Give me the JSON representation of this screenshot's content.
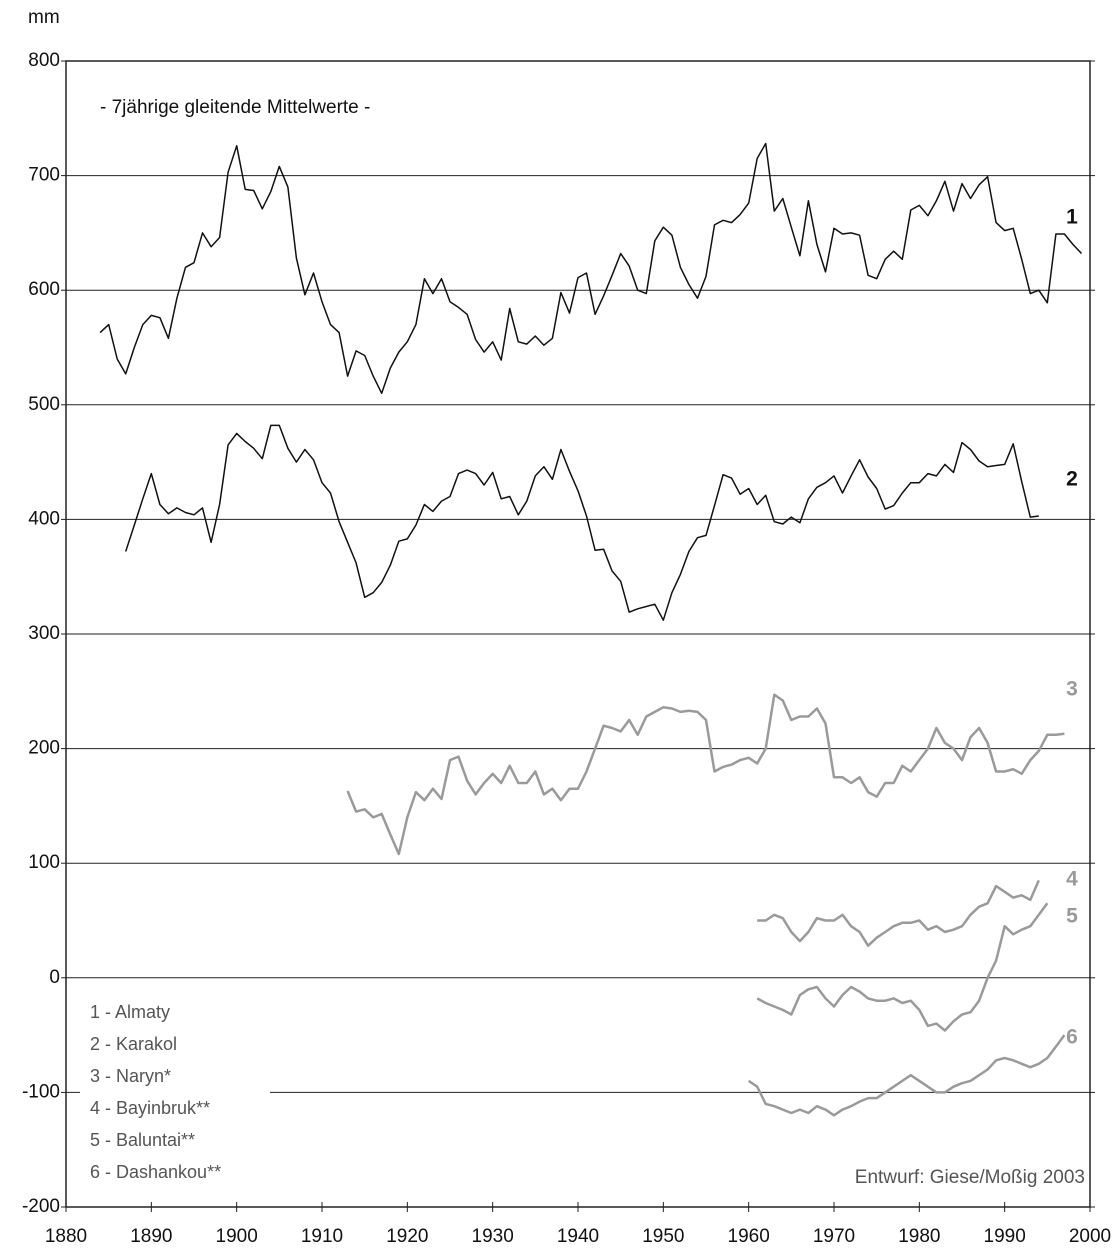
{
  "chart_data": {
    "type": "line",
    "y_label": "mm",
    "annotations": [
      "- 7jährige gleitende Mittelwerte -",
      "Entwurf: Giese/Moßig 2003"
    ],
    "xlim": [
      1880,
      2000
    ],
    "xticks": [
      1880,
      1890,
      1900,
      1910,
      1920,
      1930,
      1940,
      1950,
      1960,
      1970,
      1980,
      1990,
      2000
    ],
    "ylim": [
      -200,
      800
    ],
    "yticks": [
      -200,
      -100,
      0,
      100,
      200,
      300,
      400,
      500,
      600,
      700,
      800
    ],
    "grid": true,
    "legend": "lower left",
    "x": [
      1884,
      1885,
      1886,
      1887,
      1888,
      1889,
      1890,
      1891,
      1892,
      1893,
      1894,
      1895,
      1896,
      1897,
      1898,
      1899,
      1900,
      1901,
      1902,
      1903,
      1904,
      1905,
      1906,
      1907,
      1908,
      1909,
      1910,
      1911,
      1912,
      1913,
      1914,
      1915,
      1916,
      1917,
      1918,
      1919,
      1920,
      1921,
      1922,
      1923,
      1924,
      1925,
      1926,
      1927,
      1928,
      1929,
      1930,
      1931,
      1932,
      1933,
      1934,
      1935,
      1936,
      1937,
      1938,
      1939,
      1940,
      1941,
      1942,
      1943,
      1944,
      1945,
      1946,
      1947,
      1948,
      1949,
      1950,
      1951,
      1952,
      1953,
      1954,
      1955,
      1956,
      1957,
      1958,
      1959,
      1960,
      1961,
      1962,
      1963,
      1964,
      1965,
      1966,
      1967,
      1968,
      1969,
      1970,
      1971,
      1972,
      1973,
      1974,
      1975,
      1976,
      1977,
      1978,
      1979,
      1980,
      1981,
      1982,
      1983,
      1984,
      1985,
      1986,
      1987,
      1988,
      1989,
      1990,
      1991,
      1992,
      1993,
      1994,
      1995,
      1996,
      1997,
      1998,
      1999
    ],
    "series": [
      {
        "name": "1 - Almaty",
        "label": "1",
        "color": "#111111",
        "values": [
          563,
          570,
          540,
          527,
          550,
          570,
          578,
          576,
          558,
          593,
          620,
          624,
          650,
          638,
          646,
          703,
          726,
          688,
          687,
          671,
          686,
          708,
          690,
          628,
          596,
          615,
          590,
          570,
          563,
          525,
          547,
          543,
          525,
          510,
          532,
          546,
          555,
          570,
          610,
          597,
          610,
          590,
          585,
          579,
          557,
          546,
          555,
          539,
          584,
          555,
          553,
          560,
          552,
          558,
          598,
          580,
          611,
          615,
          579,
          595,
          613,
          632,
          621,
          600,
          597,
          643,
          655,
          648,
          620,
          605,
          593,
          612,
          657,
          661,
          659,
          666,
          676,
          715,
          728,
          669,
          680,
          655,
          630,
          678,
          640,
          616,
          654,
          649,
          650,
          648,
          613,
          610,
          627,
          634,
          627,
          670,
          674,
          665,
          678,
          695,
          669,
          693,
          680,
          692,
          699,
          659,
          652,
          654,
          627,
          597,
          600,
          589,
          649,
          649,
          640,
          632
        ]
      },
      {
        "name": "2 - Karakol",
        "label": "2",
        "color": "#111111",
        "values": [
          null,
          null,
          null,
          372,
          395,
          418,
          440,
          413,
          405,
          410,
          406,
          404,
          410,
          380,
          413,
          465,
          475,
          468,
          462,
          453,
          482,
          482,
          462,
          450,
          461,
          452,
          432,
          423,
          398,
          380,
          362,
          332,
          336,
          345,
          360,
          381,
          383,
          395,
          413,
          407,
          416,
          420,
          440,
          443,
          440,
          430,
          441,
          418,
          420,
          404,
          416,
          438,
          446,
          435,
          461,
          442,
          425,
          403,
          373,
          374,
          355,
          346,
          319,
          322,
          324,
          326,
          312,
          336,
          352,
          372,
          384,
          386,
          412,
          439,
          436,
          422,
          427,
          413,
          421,
          398,
          396,
          402,
          397,
          418,
          428,
          432,
          438,
          423,
          438,
          452,
          437,
          427,
          409,
          412,
          423,
          432,
          432,
          440,
          438,
          448,
          441,
          467,
          461,
          451,
          446,
          447,
          448,
          466,
          433,
          402,
          403,
          null,
          null,
          null,
          null,
          null
        ]
      },
      {
        "name": "3 - Naryn*",
        "label": "3",
        "color": "#9a9a9a",
        "values": [
          null,
          null,
          null,
          null,
          null,
          null,
          null,
          null,
          null,
          null,
          null,
          null,
          null,
          null,
          null,
          null,
          null,
          null,
          null,
          null,
          null,
          null,
          null,
          null,
          null,
          null,
          null,
          null,
          null,
          163,
          145,
          147,
          140,
          143,
          125,
          108,
          140,
          162,
          155,
          165,
          156,
          190,
          193,
          172,
          160,
          170,
          178,
          170,
          185,
          170,
          170,
          180,
          160,
          165,
          155,
          165,
          165,
          180,
          200,
          220,
          218,
          215,
          225,
          212,
          228,
          232,
          236,
          235,
          232,
          233,
          232,
          225,
          180,
          184,
          186,
          190,
          192,
          187,
          200,
          247,
          242,
          225,
          228,
          228,
          235,
          222,
          175,
          175,
          170,
          175,
          162,
          158,
          170,
          170,
          185,
          180,
          190,
          200,
          218,
          205,
          200,
          190,
          210,
          218,
          205,
          180,
          180,
          182,
          178,
          190,
          198,
          212,
          212,
          213,
          null,
          null
        ]
      },
      {
        "name": "4 - Bayinbruk**",
        "label": "4",
        "color": "#9a9a9a",
        "values": [
          null,
          null,
          null,
          null,
          null,
          null,
          null,
          null,
          null,
          null,
          null,
          null,
          null,
          null,
          null,
          null,
          null,
          null,
          null,
          null,
          null,
          null,
          null,
          null,
          null,
          null,
          null,
          null,
          null,
          null,
          null,
          null,
          null,
          null,
          null,
          null,
          null,
          null,
          null,
          null,
          null,
          null,
          null,
          null,
          null,
          null,
          null,
          null,
          null,
          null,
          null,
          null,
          null,
          null,
          null,
          null,
          null,
          null,
          null,
          null,
          null,
          null,
          null,
          null,
          null,
          null,
          null,
          null,
          null,
          null,
          null,
          null,
          null,
          null,
          null,
          null,
          null,
          50,
          50,
          55,
          52,
          40,
          32,
          40,
          52,
          50,
          50,
          55,
          45,
          40,
          28,
          35,
          40,
          45,
          48,
          48,
          50,
          42,
          45,
          40,
          42,
          45,
          55,
          62,
          65,
          80,
          75,
          70,
          72,
          68,
          85,
          null,
          null,
          null,
          null,
          null
        ]
      },
      {
        "name": "5 - Baluntai**",
        "label": "5",
        "color": "#9a9a9a",
        "values": [
          null,
          null,
          null,
          null,
          null,
          null,
          null,
          null,
          null,
          null,
          null,
          null,
          null,
          null,
          null,
          null,
          null,
          null,
          null,
          null,
          null,
          null,
          null,
          null,
          null,
          null,
          null,
          null,
          null,
          null,
          null,
          null,
          null,
          null,
          null,
          null,
          null,
          null,
          null,
          null,
          null,
          null,
          null,
          null,
          null,
          null,
          null,
          null,
          null,
          null,
          null,
          null,
          null,
          null,
          null,
          null,
          null,
          null,
          null,
          null,
          null,
          null,
          null,
          null,
          null,
          null,
          null,
          null,
          null,
          null,
          null,
          null,
          null,
          null,
          null,
          null,
          null,
          -18,
          -22,
          -25,
          -28,
          -32,
          -15,
          -10,
          -8,
          -18,
          -25,
          -15,
          -8,
          -12,
          -18,
          -20,
          -20,
          -18,
          -22,
          -20,
          -28,
          -42,
          -40,
          -46,
          -38,
          -32,
          -30,
          -20,
          0,
          15,
          45,
          38,
          42,
          45,
          55,
          65,
          null,
          null,
          null,
          null
        ]
      },
      {
        "name": "6 - Dashankou**",
        "label": "6",
        "color": "#9a9a9a",
        "values": [
          null,
          null,
          null,
          null,
          null,
          null,
          null,
          null,
          null,
          null,
          null,
          null,
          null,
          null,
          null,
          null,
          null,
          null,
          null,
          null,
          null,
          null,
          null,
          null,
          null,
          null,
          null,
          null,
          null,
          null,
          null,
          null,
          null,
          null,
          null,
          null,
          null,
          null,
          null,
          null,
          null,
          null,
          null,
          null,
          null,
          null,
          null,
          null,
          null,
          null,
          null,
          null,
          null,
          null,
          null,
          null,
          null,
          null,
          null,
          null,
          null,
          null,
          null,
          null,
          null,
          null,
          null,
          null,
          null,
          null,
          null,
          null,
          null,
          null,
          null,
          null,
          -90,
          -95,
          -110,
          -112,
          -115,
          -118,
          -115,
          -118,
          -112,
          -115,
          -120,
          -115,
          -112,
          -108,
          -105,
          -105,
          -100,
          -95,
          -90,
          -85,
          -90,
          -95,
          -100,
          -100,
          -95,
          -92,
          -90,
          -85,
          -80,
          -72,
          -70,
          -72,
          -75,
          -78,
          -75,
          -70,
          -60,
          -50,
          null,
          null
        ]
      }
    ]
  }
}
